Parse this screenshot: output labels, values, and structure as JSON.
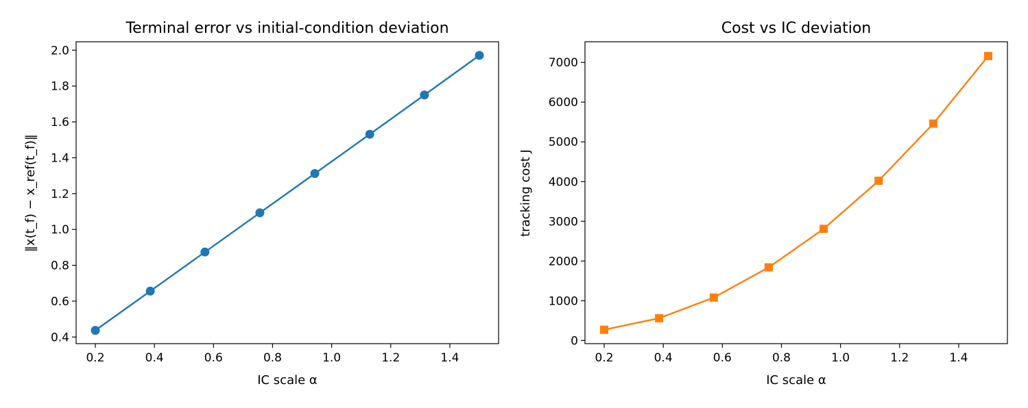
{
  "chart_data": [
    {
      "type": "line",
      "title": "Terminal error vs initial-condition deviation",
      "xlabel": "IC scale α",
      "ylabel": "‖x(t_f) − x_ref(t_f)‖",
      "xlim": [
        0.135,
        1.565
      ],
      "ylim": [
        0.363,
        2.047
      ],
      "xticks": [
        0.2,
        0.4,
        0.6,
        0.8,
        1.0,
        1.2,
        1.4
      ],
      "xtick_labels": [
        "0.2",
        "0.4",
        "0.6",
        "0.8",
        "1.0",
        "1.2",
        "1.4"
      ],
      "yticks": [
        0.4,
        0.6,
        0.8,
        1.0,
        1.2,
        1.4,
        1.6,
        1.8,
        2.0
      ],
      "ytick_labels": [
        "0.4",
        "0.6",
        "0.8",
        "1.0",
        "1.2",
        "1.4",
        "1.6",
        "1.8",
        "2.0"
      ],
      "grid": false,
      "series": [
        {
          "color": "#1f77b4",
          "marker": "circle",
          "x": [
            0.2,
            0.386,
            0.571,
            0.757,
            0.943,
            1.129,
            1.314,
            1.5
          ],
          "y": [
            0.437,
            0.656,
            0.874,
            1.093,
            1.312,
            1.531,
            1.75,
            1.971
          ]
        }
      ]
    },
    {
      "type": "line",
      "title": "Cost vs IC deviation",
      "xlabel": "IC scale α",
      "ylabel": "tracking cost J",
      "xlim": [
        0.135,
        1.565
      ],
      "ylim": [
        -80,
        7520
      ],
      "xticks": [
        0.2,
        0.4,
        0.6,
        0.8,
        1.0,
        1.2,
        1.4
      ],
      "xtick_labels": [
        "0.2",
        "0.4",
        "0.6",
        "0.8",
        "1.0",
        "1.2",
        "1.4"
      ],
      "yticks": [
        0,
        1000,
        2000,
        3000,
        4000,
        5000,
        6000,
        7000
      ],
      "ytick_labels": [
        "0",
        "1000",
        "2000",
        "3000",
        "4000",
        "5000",
        "6000",
        "7000"
      ],
      "grid": false,
      "series": [
        {
          "color": "#ff7f0e",
          "marker": "square",
          "x": [
            0.2,
            0.386,
            0.571,
            0.757,
            0.943,
            1.129,
            1.314,
            1.5
          ],
          "y": [
            270,
            560,
            1080,
            1840,
            2810,
            4020,
            5460,
            7160
          ]
        }
      ]
    }
  ]
}
